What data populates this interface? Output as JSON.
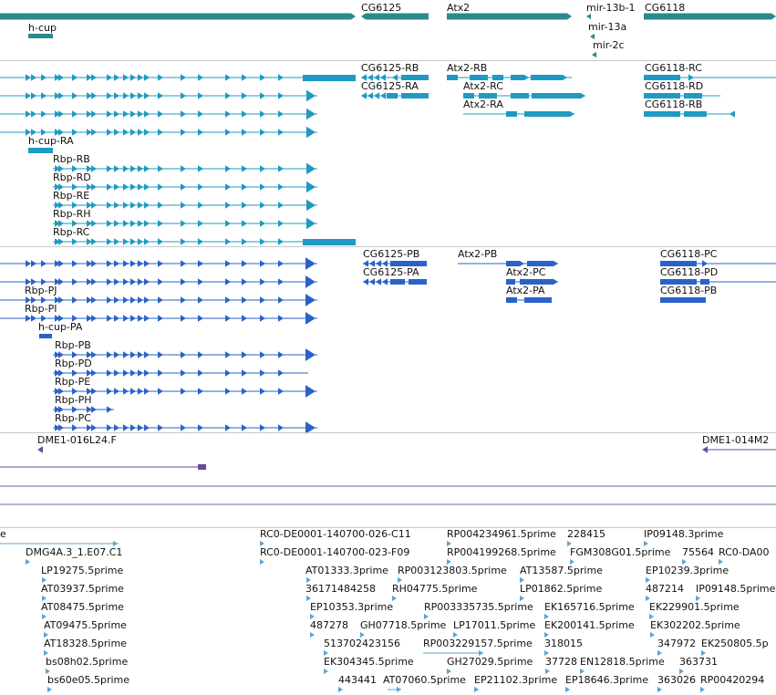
{
  "colors": {
    "gene": "#2a8a8f",
    "mrna": "#1f9ac2",
    "cds": "#2a62c8",
    "clone": "#6a4a9c",
    "est": "#5aa6d4",
    "separator": "#c8c8c8",
    "label": "#111111"
  },
  "tracks": {
    "genes": {
      "labels": [
        "h-cup",
        "CG6125",
        "Atx2",
        "mir-13b-1",
        "CG6118",
        "mir-13a",
        "mir-2c"
      ]
    },
    "transcripts": {
      "labels": [
        "CG6125-RB",
        "Atx2-RB",
        "CG6118-RC",
        "CG6125-RA",
        "Atx2-RC",
        "CG6118-RD",
        "Atx2-RA",
        "CG6118-RB",
        "h-cup-RA",
        "Rbp-RB",
        "Rbp-RD",
        "Rbp-RE",
        "Rbp-RH",
        "Rbp-RC"
      ]
    },
    "proteins": {
      "labels": [
        "CG6125-PB",
        "Atx2-PB",
        "CG6118-PC",
        "CG6125-PA",
        "Atx2-PC",
        "CG6118-PD",
        "Rbp-PJ",
        "Atx2-PA",
        "CG6118-PB",
        "Rbp-PI",
        "h-cup-PA",
        "Rbp-PB",
        "Rbp-PD",
        "Rbp-PE",
        "Rbp-PH",
        "Rbp-PC"
      ]
    },
    "clones": {
      "labels": [
        "DME1-016L24.F",
        "DME1-014M2"
      ]
    },
    "ests": {
      "labels": [
        "e",
        "DMG4A.3_1.E07.C1",
        "LP19275.5prime",
        "AT03937.5prime",
        "AT08475.5prime",
        "AT09475.5prime",
        "AT18328.5prime",
        "bs08h02.5prime",
        "bs60e05.5prime",
        "RC0-DE0001-140700-026-C11",
        "RC0-DE0001-140700-023-F09",
        "AT01333.3prime",
        "36171484258",
        "EP10353.3prime",
        "487278",
        "513702423156",
        "EK304345.5prime",
        "443441",
        "RP004234961.5prime",
        "RP004199268.5prime",
        "RP003123803.5prime",
        "RH04775.5prime",
        "RP003335735.5prime",
        "GH07718.5prime",
        "LP17011.5prime",
        "RP003229157.5prime",
        "GH27029.5prime",
        "AT07060.5prime",
        "EP21102.3prime",
        "228415",
        "FGM308G01.5prime",
        "AT13587.5prime",
        "LP01862.5prime",
        "EK165716.5prime",
        "EK200141.5prime",
        "318015",
        "37728",
        "EN12818.5prime",
        "EP18646.3prime",
        "IP09148.3prime",
        "75564",
        "RC0-DA00",
        "EP10239.3prime",
        "487214",
        "IP09148.5prime",
        "EK229901.5prime",
        "EK302202.5prime",
        "347972",
        "EK250805.5p",
        "363731",
        "363026",
        "RP00420294"
      ]
    }
  }
}
